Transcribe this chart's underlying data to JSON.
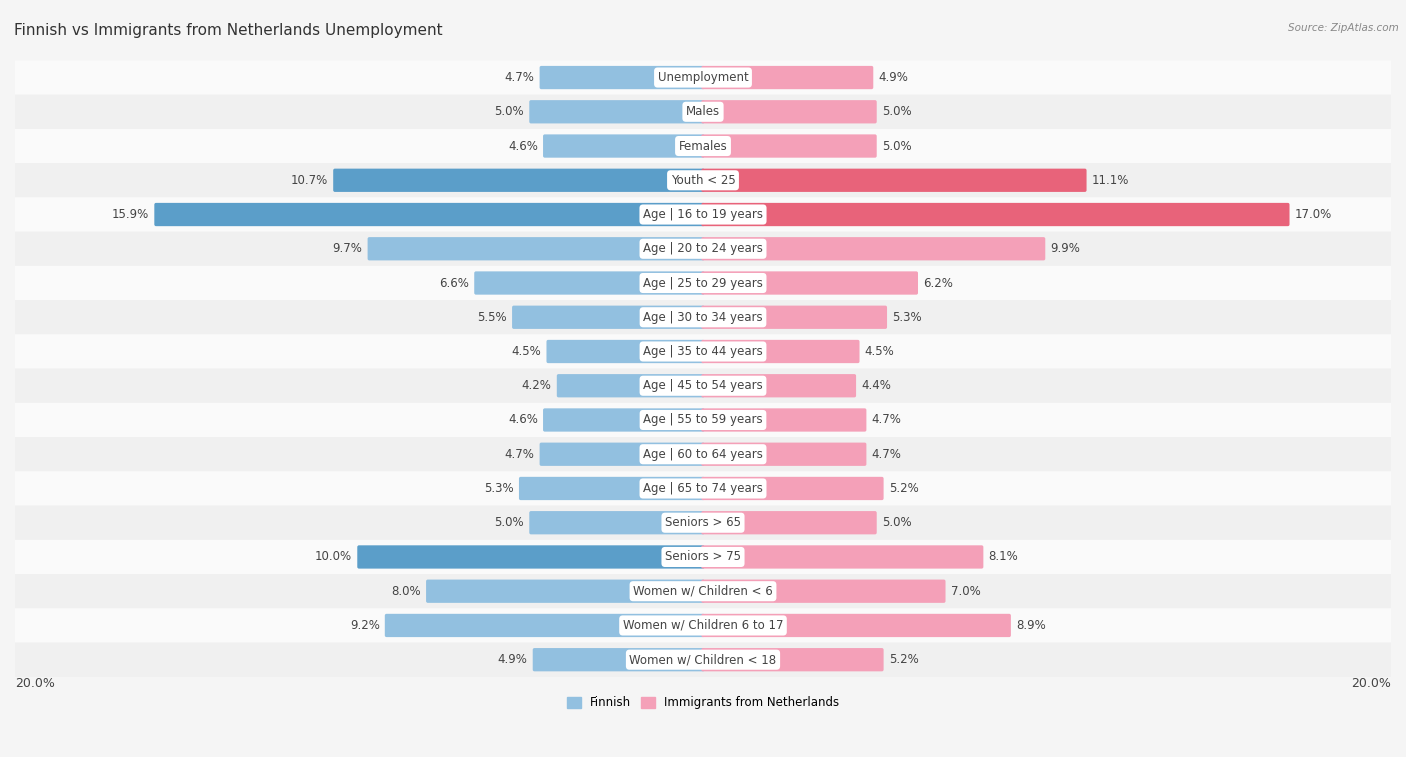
{
  "title": "Finnish vs Immigrants from Netherlands Unemployment",
  "source": "Source: ZipAtlas.com",
  "categories": [
    "Unemployment",
    "Males",
    "Females",
    "Youth < 25",
    "Age | 16 to 19 years",
    "Age | 20 to 24 years",
    "Age | 25 to 29 years",
    "Age | 30 to 34 years",
    "Age | 35 to 44 years",
    "Age | 45 to 54 years",
    "Age | 55 to 59 years",
    "Age | 60 to 64 years",
    "Age | 65 to 74 years",
    "Seniors > 65",
    "Seniors > 75",
    "Women w/ Children < 6",
    "Women w/ Children 6 to 17",
    "Women w/ Children < 18"
  ],
  "finnish": [
    4.7,
    5.0,
    4.6,
    10.7,
    15.9,
    9.7,
    6.6,
    5.5,
    4.5,
    4.2,
    4.6,
    4.7,
    5.3,
    5.0,
    10.0,
    8.0,
    9.2,
    4.9
  ],
  "immigrants": [
    4.9,
    5.0,
    5.0,
    11.1,
    17.0,
    9.9,
    6.2,
    5.3,
    4.5,
    4.4,
    4.7,
    4.7,
    5.2,
    5.0,
    8.1,
    7.0,
    8.9,
    5.2
  ],
  "finnish_color": "#92c0e0",
  "immigrants_color": "#f4a0b8",
  "highlight_finnish_color": "#5b9ec9",
  "highlight_immigrants_color": "#e8637a",
  "row_color_odd": "#f0f0f0",
  "row_color_even": "#fafafa",
  "label_bg_color": "#ffffff",
  "background_color": "#f5f5f5",
  "max_val": 20.0,
  "legend_finnish": "Finnish",
  "legend_immigrants": "Immigrants from Netherlands",
  "title_fontsize": 11,
  "label_fontsize": 8.5,
  "value_fontsize": 8.5,
  "axis_fontsize": 9
}
